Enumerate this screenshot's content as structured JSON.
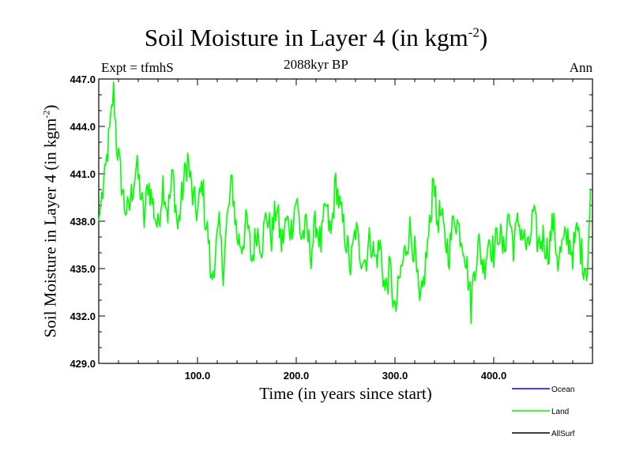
{
  "chart_data": {
    "type": "line",
    "title_main": "Soil Moisture in Layer 4 (in kgm",
    "title_sup": "-2",
    "title_end": ")",
    "subtitle_left": "Expt = tfmhS",
    "subtitle_center": "2088kyr BP",
    "subtitle_right": "Ann",
    "ylabel_main": "Soil Moisture in Layer 4 (in kgm",
    "ylabel_sup": "-2",
    "ylabel_end": ")",
    "xlabel": "Time (in years since start)",
    "xlim": [
      0,
      500
    ],
    "ylim": [
      429.0,
      447.0
    ],
    "xticks": [
      100,
      200,
      300,
      400
    ],
    "xtick_labels": [
      "100.0",
      "200.0",
      "300.0",
      "400.0"
    ],
    "yticks": [
      429.0,
      432.0,
      435.0,
      438.0,
      441.0,
      444.0,
      447.0
    ],
    "ytick_labels": [
      "429.0",
      "432.0",
      "435.0",
      "438.0",
      "441.0",
      "444.0",
      "447.0"
    ],
    "series": [
      {
        "name": "Ocean",
        "color": "#0000ff",
        "values": []
      },
      {
        "name": "Land",
        "color": "#00ff00",
        "anchors_x": [
          0,
          3,
          6,
          9,
          12,
          15,
          18,
          22,
          26,
          30,
          34,
          38,
          42,
          46,
          50,
          55,
          60,
          65,
          70,
          75,
          80,
          85,
          90,
          95,
          100,
          105,
          108,
          111,
          114,
          118,
          122,
          126,
          130,
          135,
          140,
          145,
          150,
          155,
          160,
          165,
          170,
          175,
          180,
          185,
          190,
          195,
          200,
          205,
          210,
          215,
          220,
          225,
          230,
          235,
          240,
          245,
          250,
          255,
          260,
          265,
          270,
          275,
          280,
          285,
          290,
          295,
          300,
          305,
          310,
          315,
          320,
          325,
          328,
          332,
          336,
          339,
          342,
          346,
          350,
          355,
          360,
          365,
          370,
          375,
          377,
          380,
          385,
          390,
          395,
          400,
          405,
          410,
          415,
          420,
          425,
          430,
          435,
          440,
          445,
          450,
          455,
          460,
          465,
          470,
          475,
          480,
          485,
          490,
          495,
          498
        ],
        "anchors_y": [
          438.0,
          439.5,
          440.5,
          442.5,
          444.0,
          446.5,
          443.0,
          441.0,
          439.0,
          438.5,
          440.0,
          441.5,
          440.0,
          438.0,
          440.5,
          439.0,
          437.5,
          440.5,
          438.5,
          441.0,
          437.5,
          440.0,
          442.0,
          439.5,
          438.5,
          440.5,
          438.0,
          437.0,
          434.0,
          436.0,
          437.5,
          435.0,
          438.0,
          440.5,
          437.0,
          436.5,
          438.0,
          435.5,
          437.5,
          436.5,
          438.5,
          437.0,
          439.0,
          436.5,
          438.0,
          437.5,
          439.5,
          437.0,
          437.5,
          436.0,
          438.0,
          436.5,
          439.0,
          437.0,
          440.5,
          438.5,
          437.0,
          435.0,
          437.5,
          436.0,
          435.5,
          437.0,
          435.5,
          436.5,
          433.5,
          435.0,
          432.0,
          434.5,
          436.0,
          437.5,
          436.0,
          432.5,
          433.5,
          436.0,
          438.0,
          441.5,
          438.0,
          438.5,
          437.0,
          436.0,
          438.5,
          437.5,
          436.5,
          434.0,
          432.5,
          435.0,
          436.5,
          435.0,
          437.0,
          436.0,
          437.5,
          436.0,
          438.5,
          436.5,
          438.0,
          437.0,
          436.0,
          438.5,
          436.5,
          437.0,
          436.0,
          438.0,
          435.5,
          436.5,
          437.0,
          436.0,
          437.5,
          435.5,
          435.0,
          440.0
        ]
      },
      {
        "name": "AllSurf",
        "color": "#000000",
        "values": []
      }
    ]
  }
}
